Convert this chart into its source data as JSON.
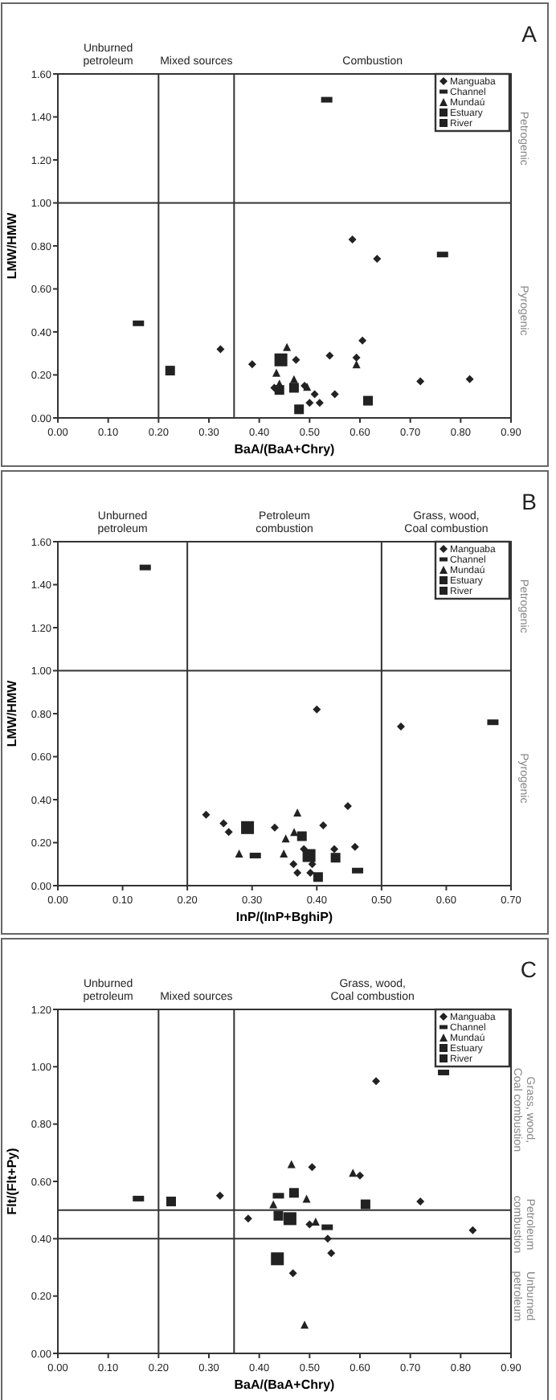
{
  "chart_data": [
    {
      "type": "scatter",
      "xlabel": "BaA/(BaA+Chry)",
      "ylabel": "LMW/HMW",
      "annotations": [
        "A",
        "Unburned petroleum",
        "Mixed sources",
        "Combustion",
        "Petrogenic",
        "Pyrogenic"
      ],
      "xlim": [
        0,
        0.9
      ],
      "xticks": [
        {
          "value": 0,
          "label": "0.00"
        },
        {
          "value": 0.1,
          "label": "0.10"
        },
        {
          "value": 0.2,
          "label": "0.20"
        },
        {
          "value": 0.3,
          "label": "0.30"
        },
        {
          "value": 0.4,
          "label": "0.40"
        },
        {
          "value": 0.5,
          "label": "0.50"
        },
        {
          "value": 0.6,
          "label": "0.60"
        },
        {
          "value": 0.7,
          "label": "0.70"
        },
        {
          "value": 0.8,
          "label": "0.80"
        },
        {
          "value": 0.9,
          "label": "0.90"
        }
      ],
      "ylim": [
        0,
        1.6
      ],
      "yticks": [
        {
          "value": 0,
          "label": "0.00"
        },
        {
          "value": 0.2,
          "label": "0.20"
        },
        {
          "value": 0.4,
          "label": "0.40"
        },
        {
          "value": 0.6,
          "label": "0.60"
        },
        {
          "value": 0.8,
          "label": "0.80"
        },
        {
          "value": 1,
          "label": "1.00"
        },
        {
          "value": 1.2,
          "label": "1.20"
        },
        {
          "value": 1.4,
          "label": "1.40"
        },
        {
          "value": 1.6,
          "label": "1.60"
        }
      ],
      "grid": false,
      "legend": "top right",
      "ref_lines": [
        {
          "axis": "x",
          "value": 0.2
        },
        {
          "axis": "x",
          "value": 0.35
        },
        {
          "axis": "y",
          "value": 1.0
        }
      ],
      "series": [
        {
          "name": "Manguaba",
          "color": "#222222",
          "marker": "diamond",
          "x": [
            0.585,
            0.634,
            0.386,
            0.473,
            0.54,
            0.605,
            0.593,
            0.43,
            0.49,
            0.51,
            0.55,
            0.5,
            0.52,
            0.72,
            0.818,
            0.323
          ],
          "values": [
            0.83,
            0.74,
            0.25,
            0.27,
            0.29,
            0.36,
            0.28,
            0.14,
            0.15,
            0.11,
            0.11,
            0.07,
            0.07,
            0.17,
            0.18,
            0.32
          ]
        },
        {
          "name": "Channel",
          "color": "#222222",
          "marker": "square",
          "x": [
            0.764,
            0.16,
            0.534
          ],
          "values": [
            0.76,
            0.44,
            1.48
          ]
        },
        {
          "name": "Mundaú",
          "color": "#222222",
          "marker": "triangle",
          "x": [
            0.455,
            0.593,
            0.434,
            0.44,
            0.469,
            0.495
          ],
          "values": [
            0.33,
            0.25,
            0.21,
            0.16,
            0.18,
            0.145
          ]
        },
        {
          "name": "Estuary",
          "color": "#222222",
          "marker": "square",
          "x": [
            0.223,
            0.44,
            0.469,
            0.616,
            0.479
          ],
          "values": [
            0.22,
            0.13,
            0.14,
            0.08,
            0.04
          ]
        },
        {
          "name": "River",
          "color": "#222222",
          "marker": "square",
          "x": [
            0.443
          ],
          "values": [
            0.27
          ]
        }
      ]
    },
    {
      "type": "scatter",
      "xlabel": "InP/(InP+BghiP)",
      "ylabel": "LMW/HMW",
      "annotations": [
        "B",
        "Unburned petroleum",
        "Petroleum combustion",
        "Grass, wood, Coal combustion",
        "Petrogenic",
        "Pyrogenic"
      ],
      "xlim": [
        0,
        0.7
      ],
      "xticks": [
        {
          "value": 0,
          "label": "0.00"
        },
        {
          "value": 0.1,
          "label": "0.10"
        },
        {
          "value": 0.2,
          "label": "0.20"
        },
        {
          "value": 0.3,
          "label": "0.30"
        },
        {
          "value": 0.4,
          "label": "0.40"
        },
        {
          "value": 0.5,
          "label": "0.50"
        },
        {
          "value": 0.6,
          "label": "0.60"
        },
        {
          "value": 0.7,
          "label": "0.70"
        }
      ],
      "ylim": [
        0,
        1.6
      ],
      "yticks": [
        {
          "value": 0,
          "label": "0.00"
        },
        {
          "value": 0.2,
          "label": "0.20"
        },
        {
          "value": 0.4,
          "label": "0.40"
        },
        {
          "value": 0.6,
          "label": "0.60"
        },
        {
          "value": 0.8,
          "label": "0.80"
        },
        {
          "value": 1,
          "label": "1.00"
        },
        {
          "value": 1.2,
          "label": "1.20"
        },
        {
          "value": 1.4,
          "label": "1.40"
        },
        {
          "value": 1.6,
          "label": "1.60"
        }
      ],
      "grid": false,
      "legend": "top right",
      "ref_lines": [
        {
          "axis": "x",
          "value": 0.2
        },
        {
          "axis": "x",
          "value": 0.5
        },
        {
          "axis": "y",
          "value": 1.0
        }
      ],
      "series": [
        {
          "name": "Manguaba",
          "color": "#222222",
          "marker": "diamond",
          "x": [
            0.4,
            0.53,
            0.229,
            0.256,
            0.264,
            0.335,
            0.448,
            0.41,
            0.38,
            0.427,
            0.459,
            0.364,
            0.393,
            0.37,
            0.39
          ],
          "values": [
            0.82,
            0.74,
            0.33,
            0.29,
            0.25,
            0.27,
            0.37,
            0.28,
            0.17,
            0.17,
            0.18,
            0.1,
            0.1,
            0.06,
            0.06
          ]
        },
        {
          "name": "Channel",
          "color": "#222222",
          "marker": "square",
          "x": [
            0.135,
            0.672,
            0.305,
            0.463
          ],
          "values": [
            1.48,
            0.76,
            0.14,
            0.07
          ]
        },
        {
          "name": "Mundaú",
          "color": "#222222",
          "marker": "triangle",
          "x": [
            0.37,
            0.365,
            0.352,
            0.28,
            0.349
          ],
          "values": [
            0.34,
            0.25,
            0.22,
            0.15,
            0.15
          ]
        },
        {
          "name": "Estuary",
          "color": "#222222",
          "marker": "square",
          "x": [
            0.377,
            0.429,
            0.402
          ],
          "values": [
            0.23,
            0.13,
            0.04
          ]
        },
        {
          "name": "River",
          "color": "#222222",
          "marker": "square",
          "x": [
            0.293,
            0.388
          ],
          "values": [
            0.27,
            0.14
          ]
        }
      ]
    },
    {
      "type": "scatter",
      "xlabel": "BaA/(BaA+Chry)",
      "ylabel": "Flt/(Flt+Py)",
      "annotations": [
        "C",
        "Unburned petroleum",
        "Mixed sources",
        "Grass, wood, Coal combustion",
        "Grass, wood, Coal combustion",
        "Petroleum combustion",
        "Unburned petroleum"
      ],
      "xlim": [
        0,
        0.9
      ],
      "xticks": [
        {
          "value": 0,
          "label": "0.00"
        },
        {
          "value": 0.1,
          "label": "0.10"
        },
        {
          "value": 0.2,
          "label": "0.20"
        },
        {
          "value": 0.3,
          "label": "0.30"
        },
        {
          "value": 0.4,
          "label": "0.40"
        },
        {
          "value": 0.5,
          "label": "0.50"
        },
        {
          "value": 0.6,
          "label": "0.60"
        },
        {
          "value": 0.7,
          "label": "0.70"
        },
        {
          "value": 0.8,
          "label": "0.80"
        },
        {
          "value": 0.9,
          "label": "0.90"
        }
      ],
      "ylim": [
        0,
        1.2
      ],
      "yticks": [
        {
          "value": 0,
          "label": "0.00"
        },
        {
          "value": 0.2,
          "label": "0.20"
        },
        {
          "value": 0.4,
          "label": "0.40"
        },
        {
          "value": 0.6,
          "label": "0.60"
        },
        {
          "value": 0.8,
          "label": "0.80"
        },
        {
          "value": 1,
          "label": "1.00"
        },
        {
          "value": 1.2,
          "label": "1.20"
        }
      ],
      "grid": false,
      "legend": "top right",
      "ref_lines": [
        {
          "axis": "x",
          "value": 0.2
        },
        {
          "axis": "x",
          "value": 0.35
        },
        {
          "axis": "y",
          "value": 0.5
        },
        {
          "axis": "y",
          "value": 0.4
        }
      ],
      "series": [
        {
          "name": "Manguaba",
          "color": "#222222",
          "marker": "diamond",
          "x": [
            0.322,
            0.378,
            0.505,
            0.6,
            0.632,
            0.72,
            0.5,
            0.536,
            0.543,
            0.824,
            0.467
          ],
          "values": [
            0.55,
            0.47,
            0.65,
            0.62,
            0.95,
            0.53,
            0.45,
            0.4,
            0.35,
            0.43,
            0.28
          ]
        },
        {
          "name": "Channel",
          "color": "#222222",
          "marker": "square",
          "x": [
            0.16,
            0.766,
            0.438,
            0.535
          ],
          "values": [
            0.54,
            0.98,
            0.55,
            0.44
          ]
        },
        {
          "name": "Mundaú",
          "color": "#222222",
          "marker": "triangle",
          "x": [
            0.464,
            0.586,
            0.428,
            0.494,
            0.512,
            0.49
          ],
          "values": [
            0.66,
            0.63,
            0.52,
            0.54,
            0.46,
            0.1
          ]
        },
        {
          "name": "Estuary",
          "color": "#222222",
          "marker": "square",
          "x": [
            0.225,
            0.469,
            0.611,
            0.438
          ],
          "values": [
            0.53,
            0.56,
            0.52,
            0.48
          ]
        },
        {
          "name": "River",
          "color": "#222222",
          "marker": "square",
          "x": [
            0.461,
            0.436
          ],
          "values": [
            0.47,
            0.33
          ]
        }
      ]
    }
  ]
}
